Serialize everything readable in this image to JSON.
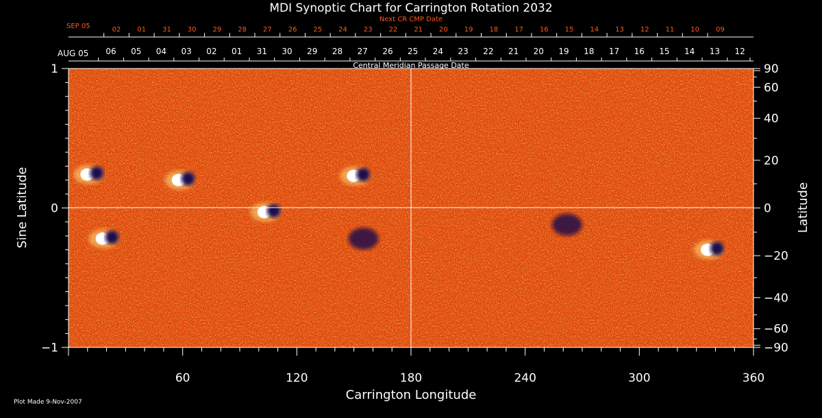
{
  "chart_data": {
    "type": "heatmap",
    "title": "MDI Synoptic Chart for Carrington Rotation 2032",
    "xlabel": "Carrington Longitude",
    "ylabel_left": "Sine Latitude",
    "ylabel_right": "Latitude",
    "xlim": [
      0,
      360
    ],
    "ylim": [
      -1,
      1
    ],
    "x_ticks": [
      60,
      120,
      180,
      240,
      300,
      360
    ],
    "y_ticks_left": [
      {
        "value": 1,
        "label": "1"
      },
      {
        "value": 0,
        "label": "0"
      },
      {
        "value": -1,
        "label": "−1"
      }
    ],
    "y_ticks_right": [
      90,
      60,
      40,
      20,
      0,
      -20,
      -40,
      -60,
      -90
    ],
    "y_ticks_right_labels": [
      "90",
      "60",
      "40",
      "20",
      "0",
      "−20",
      "−40",
      "−60",
      "−90"
    ],
    "top_axis_label": "Central Meridian Passage Date",
    "top_axis_month": "AUG 05",
    "top_axis_dates": [
      "06",
      "05",
      "04",
      "03",
      "02",
      "01",
      "31",
      "30",
      "29",
      "28",
      "27",
      "26",
      "25",
      "24",
      "23",
      "22",
      "21",
      "20",
      "19",
      "18",
      "17",
      "16",
      "15",
      "14",
      "13",
      "12"
    ],
    "next_axis_label": "Next CR CMP Date",
    "next_axis_month": "SEP 05",
    "next_axis_dates": [
      "02",
      "01",
      "31",
      "30",
      "29",
      "28",
      "27",
      "26",
      "25",
      "24",
      "23",
      "22",
      "21",
      "20",
      "19",
      "18",
      "17",
      "16",
      "15",
      "14",
      "13",
      "12",
      "11",
      "10",
      "09"
    ],
    "grid": "crosshair at longitude 180 and sine latitude 0",
    "colorscale": [
      "#000040",
      "#2a1060",
      "#c01800",
      "#e04008",
      "#f06818",
      "#ffd040",
      "#ffffff"
    ],
    "active_regions": [
      {
        "lon": 12,
        "sinlat": 0.24,
        "polarity": "mixed"
      },
      {
        "lon": 20,
        "sinlat": -0.22,
        "polarity": "mixed"
      },
      {
        "lon": 60,
        "sinlat": 0.2,
        "polarity": "mixed"
      },
      {
        "lon": 105,
        "sinlat": -0.03,
        "polarity": "mixed"
      },
      {
        "lon": 152,
        "sinlat": 0.23,
        "polarity": "mixed"
      },
      {
        "lon": 155,
        "sinlat": -0.22,
        "polarity": "negative"
      },
      {
        "lon": 262,
        "sinlat": -0.12,
        "polarity": "negative"
      },
      {
        "lon": 338,
        "sinlat": -0.3,
        "polarity": "mixed"
      }
    ]
  },
  "footer": {
    "plot_made": "Plot Made  9-Nov-2007"
  }
}
